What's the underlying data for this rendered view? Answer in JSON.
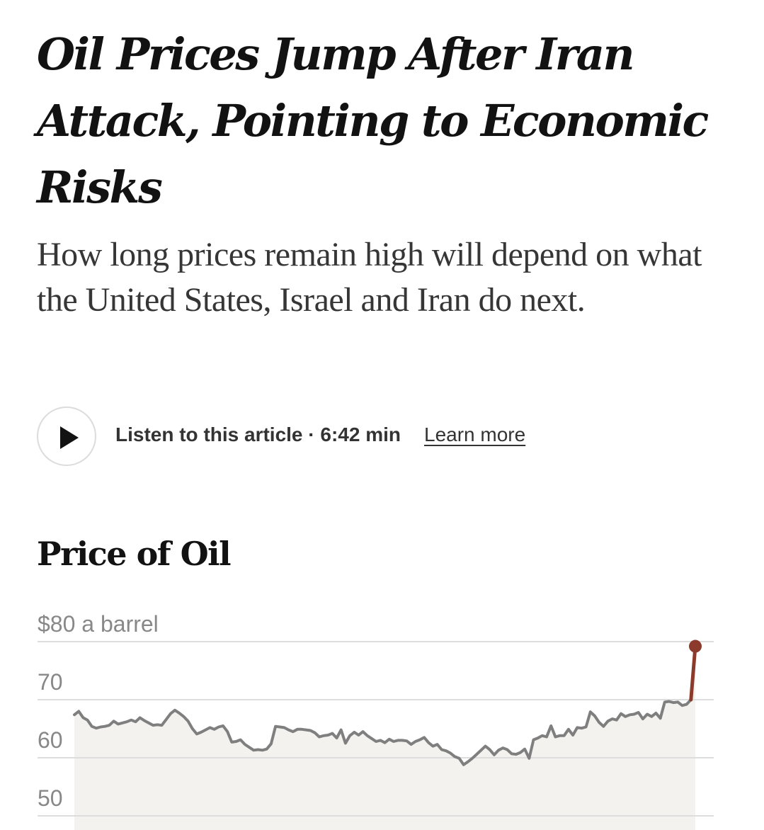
{
  "article": {
    "headline": "Oil Prices Jump After Iran Attack, Pointing to Economic Risks",
    "summary": "How long prices remain high will depend on what the United States, Israel and Iran do next."
  },
  "audio": {
    "listen_label": "Listen to this article · 6:42 min",
    "learn_more": "Learn more"
  },
  "chart_data": {
    "type": "line",
    "title": "Price of Oil",
    "ylabel": "$80 a barrel",
    "ylim": [
      50,
      80
    ],
    "yticks": [
      {
        "value": 80,
        "label": "$80 a barrel"
      },
      {
        "value": 70,
        "label": "70"
      },
      {
        "value": 60,
        "label": "60"
      },
      {
        "value": 50,
        "label": "50"
      }
    ],
    "grid": true,
    "colors": {
      "line": "#7f7f7f",
      "highlight": "#8b3a2b",
      "area": "#f3f2ee",
      "grid": "#dddddd"
    },
    "series": [
      {
        "role": "history",
        "values": [
          67.4,
          68.0,
          66.9,
          66.5,
          65.4,
          65.1,
          65.3,
          65.4,
          65.6,
          66.3,
          65.8,
          66.0,
          66.2,
          66.5,
          66.2,
          66.9,
          66.4,
          66.0,
          65.6,
          65.7,
          65.6,
          66.6,
          67.6,
          68.2,
          67.7,
          67.1,
          66.3,
          65.0,
          64.1,
          64.4,
          64.8,
          65.2,
          64.9,
          65.3,
          65.5,
          64.5,
          62.7,
          62.8,
          63.1,
          62.3,
          61.8,
          61.3,
          61.4,
          61.3,
          61.5,
          62.4,
          65.4,
          65.3,
          65.2,
          64.8,
          64.5,
          64.9,
          64.9,
          64.8,
          64.7,
          64.3,
          63.6,
          63.8,
          63.9,
          64.2,
          63.4,
          64.8,
          62.5,
          63.8,
          64.4,
          63.9,
          64.5,
          63.8,
          63.3,
          62.8,
          63.0,
          62.6,
          63.2,
          62.8,
          63.0,
          63.0,
          62.9,
          62.3,
          62.8,
          63.1,
          63.5,
          62.6,
          62.0,
          62.3,
          61.4,
          61.2,
          60.8,
          60.2,
          59.9,
          58.8,
          59.3,
          59.9,
          60.6,
          61.3,
          62.0,
          61.4,
          60.5,
          61.3,
          61.7,
          61.4,
          60.7,
          60.6,
          60.9,
          61.5,
          59.9,
          63.1,
          63.4,
          63.8,
          63.6,
          65.5,
          63.6,
          63.8,
          63.8,
          64.9,
          63.9,
          65.2,
          65.1,
          65.3,
          67.9,
          67.2,
          66.1,
          65.4,
          66.3,
          66.7,
          66.5,
          67.6,
          67.1,
          67.4,
          67.5,
          67.8,
          66.7,
          67.5,
          67.1,
          67.7,
          66.8,
          69.6,
          69.7,
          69.5,
          69.6,
          69.0,
          69.2,
          70.0
        ]
      },
      {
        "role": "latest",
        "values": [
          70.0,
          79.2
        ]
      }
    ]
  }
}
